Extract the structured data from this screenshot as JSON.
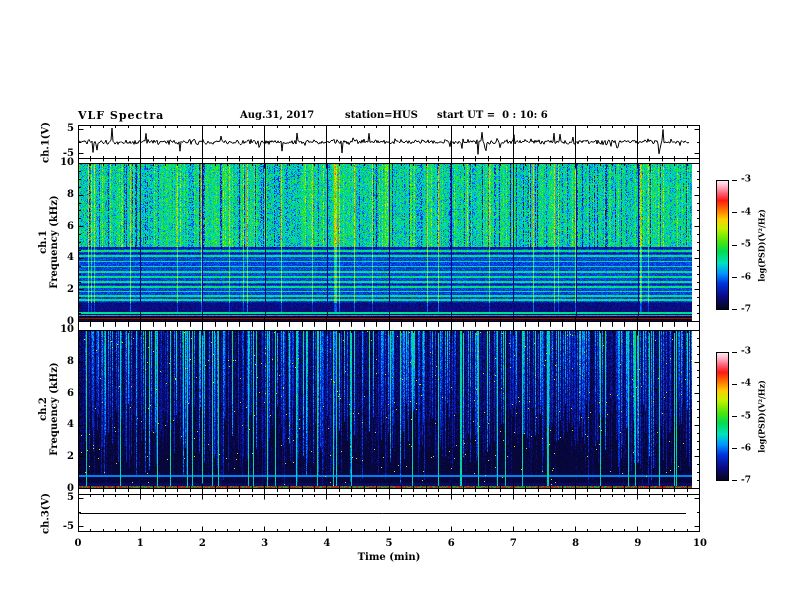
{
  "header": {
    "title": "VLF Spectra",
    "date": "Aug.31, 2017",
    "station": "station=HUS",
    "start_ut": "start UT =  0 : 10: 6"
  },
  "axes": {
    "x": {
      "label": "Time (min)",
      "ticks": [
        "0",
        "1",
        "2",
        "3",
        "4",
        "5",
        "6",
        "7",
        "8",
        "9",
        "10"
      ],
      "range_min": [
        0,
        10
      ]
    },
    "p1": {
      "ylabel": "ch.1(V)",
      "ticks": [
        "5",
        "-5"
      ]
    },
    "p2": {
      "ylabel1": "ch.1",
      "ylabel2": "Frequency (kHz)",
      "ticks": [
        "10",
        "8",
        "6",
        "4",
        "2",
        "0"
      ]
    },
    "p3": {
      "ylabel1": "ch.2",
      "ylabel2": "Frequency (kHz)",
      "ticks": [
        "10",
        "8",
        "6",
        "4",
        "2",
        "0"
      ]
    },
    "p4": {
      "ylabel": "ch.3(V)",
      "ticks": [
        "5",
        "-5"
      ]
    }
  },
  "colorbar": {
    "label": "log(PSD)(V²/Hz)",
    "ticks": [
      "-3",
      "-4",
      "-5",
      "-6",
      "-7"
    ],
    "range": [
      -7,
      -3
    ]
  },
  "chart_data": [
    {
      "type": "line",
      "name": "ch.1 voltage waveform",
      "x_range_min": [
        0,
        10
      ],
      "y_ticks_V": [
        5,
        -5
      ],
      "ends_at_min": 9.8,
      "summary": "broadband noise trace centered on 0 V with frequent impulsive sferic spikes of a few volts; thin vertical grid lines at every integer minute"
    },
    {
      "type": "heatmap",
      "name": "ch.1 VLF spectrogram",
      "x_range_min": [
        0,
        10
      ],
      "y_range_khz": [
        0,
        10
      ],
      "z_label": "log(PSD)(V²/Hz)",
      "z_range": [
        -7,
        -3
      ],
      "summary": "bright cyan-green field from ~4.6 to 10 kHz with dense vertical sferic striations (occasional yellow-green bursts and dark navy columns); horizontal power-line-harmonic stripes between ~1.2 and 4.6 kHz on a darker blue background; dark blue below ~1 kHz; narrow green and cyan lines near 0.4-0.55 kHz and a dark red/maroon line near 0.15 kHz; faint dark columns at each minute",
      "colormap_stops": [
        [
          0,
          "#050519"
        ],
        [
          0.1,
          "#0a0a82"
        ],
        [
          0.2,
          "#0032dc"
        ],
        [
          0.28,
          "#0096ff"
        ],
        [
          0.36,
          "#00e1be"
        ],
        [
          0.45,
          "#00dc50"
        ],
        [
          0.53,
          "#50e60a"
        ],
        [
          0.63,
          "#c8f000"
        ],
        [
          0.7,
          "#ffcd00"
        ],
        [
          0.78,
          "#ff6900"
        ],
        [
          0.845,
          "#ff1914"
        ],
        [
          0.9,
          "#ff5f73"
        ],
        [
          0.95,
          "#ffafc3"
        ],
        [
          1,
          "#ffeef2"
        ]
      ],
      "render": {
        "seed": 42,
        "stripe_freqs_khz": [
          4.45,
          4.12,
          3.8,
          3.48,
          3.16,
          2.84,
          2.52,
          2.2,
          1.9,
          1.62,
          1.38
        ]
      }
    },
    {
      "type": "heatmap",
      "name": "ch.2 VLF spectrogram",
      "x_range_min": [
        0,
        10
      ],
      "y_range_khz": [
        0,
        10
      ],
      "z_label": "log(PSD)(V²/Hz)",
      "z_range": [
        -7,
        -3
      ],
      "summary": "near-black background with dense vertical blue/cyan sferic streaks that fade toward lower frequencies; occasional full-height bright green streaks and rare orange specks; thin cyan horizontal line near 0.8 kHz; continuous red line with green segments along the bottom edge",
      "render": {
        "seed": 1337
      }
    },
    {
      "type": "line",
      "name": "ch.3 voltage waveform",
      "x_range_min": [
        0,
        10
      ],
      "y_ticks_V": [
        5,
        -5
      ],
      "ends_at_min": 9.8,
      "summary": "perfectly flat line at 0 V ending slightly before the right frame"
    }
  ]
}
